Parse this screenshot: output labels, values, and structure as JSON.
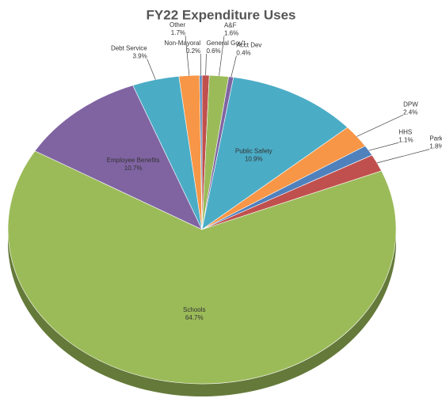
{
  "chart_data": {
    "type": "pie",
    "title": "FY22 Expenditure Uses",
    "categories": [
      "General Gov't",
      "A&F",
      "Acct Dev",
      "Public Safety",
      "DPW",
      "HHS",
      "Parks & Facilities",
      "Schools",
      "Employee Benefits",
      "Debt Service",
      "Other",
      "Non-Mayoral"
    ],
    "values": [
      0.6,
      1.6,
      0.4,
      10.9,
      2.4,
      1.1,
      1.8,
      64.7,
      10.7,
      3.9,
      1.7,
      0.2
    ],
    "value_labels": [
      "0.6%",
      "1.6%",
      "0.4%",
      "10.9%",
      "2.4%",
      "1.1%",
      "1.8%",
      "64.7%",
      "10.7%",
      "3.9%",
      "1.7%",
      "0.2%"
    ],
    "colors": [
      "#c0504d",
      "#9bbb59",
      "#8064a2",
      "#4bacc6",
      "#f79646",
      "#4f81bd",
      "#c0504d",
      "#9bbb59",
      "#8064a2",
      "#4bacc6",
      "#f79646",
      "#4f81bd"
    ]
  }
}
